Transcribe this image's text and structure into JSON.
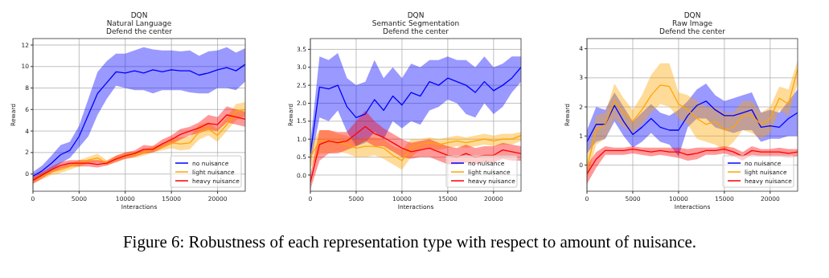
{
  "chart_data": [
    {
      "type": "line",
      "title": "DQN\nNatural Language\nDefend the center",
      "xlabel": "Interactions",
      "ylabel": "Reward",
      "x": [
        0,
        1000,
        2000,
        3000,
        4000,
        5000,
        6000,
        7000,
        8000,
        9000,
        10000,
        11000,
        12000,
        13000,
        14000,
        15000,
        16000,
        17000,
        18000,
        19000,
        20000,
        21000,
        22000,
        23000
      ],
      "xlim": [
        0,
        23000
      ],
      "xticks": [
        0,
        5000,
        10000,
        15000,
        20000
      ],
      "ylim": [
        -1.6,
        12.6
      ],
      "yticks": [
        0,
        2,
        4,
        6,
        8,
        10,
        12
      ],
      "grid": true,
      "legend": "bottom right",
      "annotations": [
        "Figure 6: Robustness of each representation type with respect to amount of nuisance."
      ],
      "series": [
        {
          "name": "no nuisance",
          "color": "#0000ff",
          "values": [
            -0.2,
            0.3,
            1.0,
            1.8,
            2.2,
            3.5,
            5.5,
            7.5,
            8.5,
            9.5,
            9.4,
            9.6,
            9.4,
            9.7,
            9.5,
            9.7,
            9.6,
            9.6,
            9.2,
            9.4,
            9.7,
            9.9,
            9.6,
            10.2
          ],
          "lower": [
            -0.6,
            -0.2,
            0.3,
            1.0,
            1.5,
            2.5,
            3.5,
            5.5,
            7.0,
            8.2,
            8.0,
            7.8,
            7.8,
            7.5,
            7.8,
            7.8,
            7.8,
            7.6,
            7.5,
            7.5,
            8.0,
            8.0,
            7.8,
            8.6
          ],
          "upper": [
            0.2,
            0.8,
            1.7,
            2.7,
            3.0,
            4.5,
            7.0,
            9.5,
            10.5,
            11.2,
            11.2,
            11.5,
            11.8,
            11.6,
            11.5,
            11.5,
            11.4,
            11.5,
            11.0,
            11.4,
            11.5,
            11.8,
            11.3,
            11.7
          ]
        },
        {
          "name": "light nuisance",
          "color": "#ffa500",
          "values": [
            -0.6,
            -0.2,
            0.2,
            0.4,
            0.7,
            1.0,
            1.3,
            1.5,
            1.0,
            1.4,
            1.7,
            1.8,
            2.0,
            2.3,
            2.5,
            2.9,
            2.8,
            2.9,
            3.9,
            4.2,
            3.6,
            4.6,
            5.8,
            6.0
          ],
          "lower": [
            -0.9,
            -0.5,
            -0.1,
            0.1,
            0.4,
            0.7,
            1.0,
            1.1,
            0.8,
            1.1,
            1.4,
            1.5,
            1.7,
            2.0,
            2.2,
            2.4,
            2.2,
            2.3,
            3.2,
            3.6,
            3.0,
            4.0,
            5.0,
            5.4
          ],
          "upper": [
            -0.3,
            0.1,
            0.5,
            0.7,
            1.0,
            1.3,
            1.6,
            1.9,
            1.3,
            1.7,
            2.0,
            2.1,
            2.3,
            2.6,
            2.8,
            3.4,
            3.4,
            3.5,
            4.6,
            4.8,
            4.2,
            5.3,
            6.5,
            6.7
          ]
        },
        {
          "name": "heavy nuisance",
          "color": "#ff0000",
          "values": [
            -0.6,
            -0.1,
            0.4,
            0.8,
            1.0,
            1.0,
            1.0,
            0.9,
            1.0,
            1.4,
            1.7,
            1.9,
            2.3,
            2.3,
            2.8,
            3.2,
            3.7,
            4.0,
            4.3,
            4.7,
            4.6,
            5.5,
            5.3,
            5.1
          ],
          "lower": [
            -0.9,
            -0.4,
            0.1,
            0.5,
            0.7,
            0.7,
            0.7,
            0.6,
            0.8,
            1.1,
            1.4,
            1.6,
            1.9,
            2.0,
            2.4,
            2.8,
            3.2,
            3.6,
            3.8,
            4.1,
            4.0,
            4.8,
            4.6,
            4.4
          ],
          "upper": [
            -0.3,
            0.2,
            0.7,
            1.1,
            1.3,
            1.3,
            1.3,
            1.3,
            1.2,
            1.7,
            2.0,
            2.2,
            2.7,
            2.6,
            3.2,
            3.6,
            4.2,
            4.4,
            4.8,
            5.5,
            5.3,
            6.3,
            6.0,
            5.8
          ]
        }
      ]
    },
    {
      "type": "line",
      "title": "DQN\nSemantic Segmentation\nDefend the center",
      "xlabel": "Interactions",
      "ylabel": "Reward",
      "x": [
        0,
        1000,
        2000,
        3000,
        4000,
        5000,
        6000,
        7000,
        8000,
        9000,
        10000,
        11000,
        12000,
        13000,
        14000,
        15000,
        16000,
        17000,
        18000,
        19000,
        20000,
        21000,
        22000,
        23000
      ],
      "xlim": [
        0,
        23000
      ],
      "xticks": [
        0,
        5000,
        10000,
        15000,
        20000
      ],
      "ylim": [
        -0.45,
        3.8
      ],
      "yticks": [
        {
          "value": 0,
          "label": "0.0"
        },
        {
          "value": 0.5,
          "label": "0.5"
        },
        {
          "value": 1,
          "label": "1.0"
        },
        {
          "value": 1.5,
          "label": "1.5"
        },
        {
          "value": 2,
          "label": "2.0"
        },
        {
          "value": 2.5,
          "label": "2.5"
        },
        {
          "value": 3,
          "label": "3.0"
        },
        {
          "value": 3.5,
          "label": "3.5"
        }
      ],
      "grid": true,
      "legend": "bottom right",
      "series": [
        {
          "name": "no nuisance",
          "color": "#0000ff",
          "values": [
            0.6,
            2.45,
            2.4,
            2.5,
            1.9,
            1.6,
            1.7,
            2.1,
            1.8,
            2.2,
            1.95,
            2.3,
            2.2,
            2.6,
            2.5,
            2.7,
            2.6,
            2.5,
            2.3,
            2.6,
            2.35,
            2.5,
            2.7,
            3.0
          ],
          "lower": [
            0.3,
            1.6,
            1.5,
            1.8,
            1.2,
            0.8,
            0.9,
            1.2,
            1.0,
            1.5,
            1.3,
            1.5,
            1.4,
            1.8,
            1.9,
            2.1,
            2.0,
            1.7,
            1.6,
            2.0,
            1.7,
            1.9,
            2.3,
            2.6
          ],
          "upper": [
            0.9,
            3.3,
            3.2,
            3.4,
            2.7,
            2.5,
            2.6,
            3.2,
            2.7,
            3.0,
            2.7,
            3.1,
            3.0,
            3.2,
            3.2,
            3.3,
            3.2,
            3.2,
            3.0,
            3.3,
            3.0,
            3.1,
            3.3,
            3.3
          ]
        },
        {
          "name": "light nuisance",
          "color": "#ffa500",
          "values": [
            0.5,
            0.95,
            0.95,
            0.9,
            0.85,
            0.75,
            0.8,
            0.8,
            0.75,
            0.55,
            0.4,
            0.75,
            0.85,
            0.9,
            0.85,
            0.9,
            0.95,
            0.9,
            0.95,
            1.0,
            0.95,
            1.0,
            1.0,
            1.1
          ],
          "lower": [
            0.2,
            0.6,
            0.6,
            0.65,
            0.6,
            0.5,
            0.5,
            0.55,
            0.45,
            0.3,
            0.15,
            0.5,
            0.7,
            0.75,
            0.7,
            0.75,
            0.8,
            0.75,
            0.8,
            0.85,
            0.8,
            0.85,
            0.85,
            0.95
          ],
          "upper": [
            0.8,
            1.25,
            1.25,
            1.15,
            1.1,
            1.0,
            1.05,
            1.05,
            1.0,
            0.8,
            0.7,
            1.0,
            1.0,
            1.05,
            1.0,
            1.05,
            1.1,
            1.05,
            1.1,
            1.15,
            1.1,
            1.15,
            1.15,
            1.2
          ]
        },
        {
          "name": "heavy nuisance",
          "color": "#ff0000",
          "values": [
            -0.2,
            0.85,
            0.95,
            0.9,
            0.95,
            1.15,
            1.35,
            1.15,
            1.05,
            0.9,
            0.75,
            0.65,
            0.7,
            0.75,
            0.65,
            0.55,
            0.5,
            0.6,
            0.5,
            0.55,
            0.55,
            0.7,
            0.65,
            0.6
          ],
          "lower": [
            -0.4,
            0.4,
            0.6,
            0.6,
            0.7,
            0.8,
            0.95,
            0.8,
            0.8,
            0.65,
            0.5,
            0.45,
            0.5,
            0.5,
            0.4,
            0.3,
            0.3,
            0.35,
            0.3,
            0.35,
            0.35,
            0.45,
            0.4,
            0.4
          ],
          "upper": [
            0.0,
            1.25,
            1.25,
            1.2,
            1.2,
            1.5,
            1.8,
            1.5,
            1.3,
            1.15,
            1.0,
            0.9,
            0.95,
            1.0,
            0.9,
            0.8,
            0.75,
            0.85,
            0.75,
            0.8,
            0.8,
            0.9,
            0.85,
            0.8
          ]
        }
      ]
    },
    {
      "type": "line",
      "title": "DQN\nRaw Image\nDefend the center",
      "xlabel": "Interactions",
      "ylabel": "Reward",
      "x": [
        0,
        1000,
        2000,
        3000,
        4000,
        5000,
        6000,
        7000,
        8000,
        9000,
        10000,
        11000,
        12000,
        13000,
        14000,
        15000,
        16000,
        17000,
        18000,
        19000,
        20000,
        21000,
        22000,
        23000
      ],
      "xlim": [
        0,
        23000
      ],
      "xticks": [
        0,
        5000,
        10000,
        15000,
        20000
      ],
      "ylim": [
        -0.9,
        4.35
      ],
      "yticks": [
        0,
        1,
        2,
        3,
        4
      ],
      "grid": true,
      "legend": "bottom right",
      "series": [
        {
          "name": "no nuisance",
          "color": "#0000ff",
          "values": [
            0.8,
            1.4,
            1.4,
            2.05,
            1.5,
            1.05,
            1.3,
            1.6,
            1.3,
            1.2,
            1.2,
            1.7,
            2.05,
            2.2,
            1.9,
            1.7,
            1.7,
            1.8,
            1.9,
            1.3,
            1.35,
            1.3,
            1.6,
            1.8
          ],
          "lower": [
            0.4,
            0.8,
            0.9,
            1.5,
            1.0,
            0.6,
            0.8,
            1.1,
            0.8,
            0.7,
            0.3,
            1.3,
            1.6,
            1.6,
            1.3,
            1.2,
            1.1,
            1.2,
            1.2,
            0.8,
            0.9,
            0.9,
            1.0,
            1.0
          ],
          "upper": [
            1.2,
            2.0,
            1.9,
            2.5,
            2.0,
            1.5,
            1.8,
            2.1,
            1.8,
            1.7,
            1.9,
            2.2,
            2.6,
            2.8,
            2.4,
            2.2,
            2.3,
            2.4,
            2.5,
            1.8,
            1.9,
            1.8,
            2.2,
            2.6
          ]
        },
        {
          "name": "light nuisance",
          "color": "#ffa500",
          "values": [
            -0.1,
            1.2,
            1.4,
            2.2,
            1.8,
            1.5,
            1.9,
            2.4,
            2.75,
            2.7,
            2.1,
            1.9,
            1.6,
            1.4,
            1.5,
            1.2,
            1.3,
            1.7,
            1.7,
            1.4,
            1.6,
            2.3,
            2.1,
            3.3
          ],
          "lower": [
            -0.5,
            0.7,
            0.9,
            1.6,
            1.3,
            1.1,
            1.4,
            1.8,
            2.1,
            2.0,
            1.6,
            1.4,
            0.9,
            0.8,
            0.7,
            0.5,
            0.8,
            1.2,
            1.1,
            0.9,
            1.1,
            1.9,
            1.7,
            2.8
          ],
          "upper": [
            0.3,
            1.7,
            1.8,
            2.8,
            2.3,
            1.9,
            2.4,
            3.1,
            3.5,
            3.5,
            2.5,
            2.4,
            2.2,
            2.0,
            2.0,
            1.8,
            1.8,
            2.2,
            2.2,
            1.8,
            2.0,
            2.7,
            2.6,
            3.6
          ]
        },
        {
          "name": "heavy nuisance",
          "color": "#ff0000",
          "values": [
            -0.3,
            0.2,
            0.5,
            0.5,
            0.5,
            0.55,
            0.5,
            0.45,
            0.5,
            0.45,
            0.45,
            0.35,
            0.4,
            0.5,
            0.5,
            0.55,
            0.45,
            0.3,
            0.5,
            0.45,
            0.45,
            0.45,
            0.4,
            0.45
          ],
          "lower": [
            -0.65,
            -0.1,
            0.35,
            0.35,
            0.35,
            0.4,
            0.35,
            0.3,
            0.35,
            0.3,
            0.25,
            0.15,
            0.2,
            0.35,
            0.35,
            0.4,
            0.3,
            0.15,
            0.35,
            0.3,
            0.3,
            0.3,
            0.25,
            0.3
          ],
          "upper": [
            0.0,
            0.45,
            0.65,
            0.6,
            0.6,
            0.65,
            0.6,
            0.6,
            0.6,
            0.6,
            0.6,
            0.55,
            0.6,
            0.6,
            0.6,
            0.65,
            0.6,
            0.45,
            0.65,
            0.55,
            0.55,
            0.6,
            0.55,
            0.55
          ]
        }
      ]
    }
  ]
}
